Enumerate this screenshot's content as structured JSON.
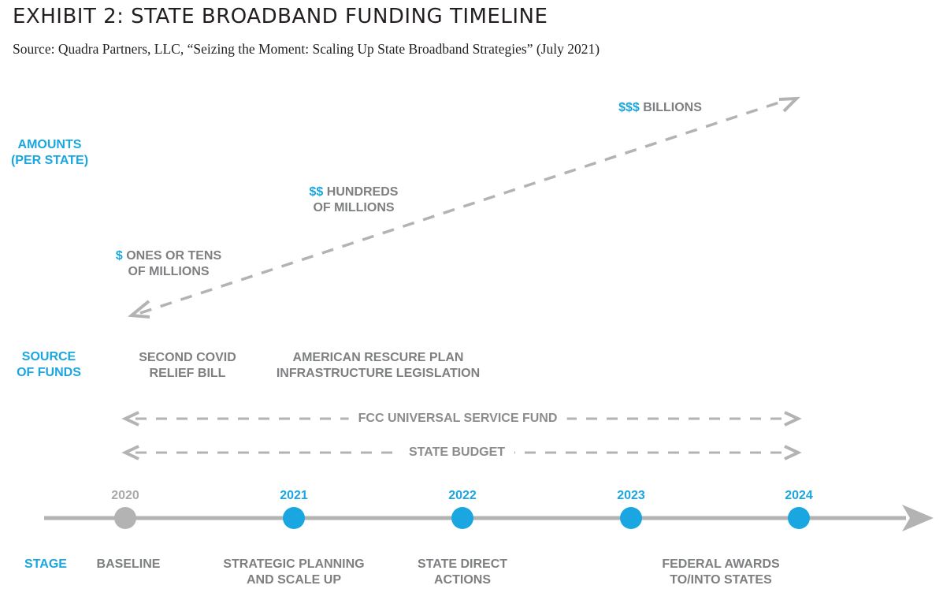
{
  "header": {
    "title": "EXHIBIT 2: STATE BROADBAND FUNDING TIMELINE",
    "source": "Source: Quadra Partners, LLC, “Seizing the Moment: Scaling Up State Broadband Strategies” (July 2021)"
  },
  "rows": {
    "amounts_line1": "AMOUNTS",
    "amounts_line2": "(PER STATE)",
    "source_line1": "SOURCE",
    "source_line2": "OF FUNDS",
    "stage": "STAGE"
  },
  "amounts": {
    "low_sym": "$",
    "low_line1": " ONES OR TENS",
    "low_line2": "OF MILLIONS",
    "mid_sym": "$$",
    "mid_line1": " HUNDREDS",
    "mid_line2": "OF MILLIONS",
    "high_sym": "$$$",
    "high_line1": " BILLIONS"
  },
  "funds": {
    "covid_line1": "SECOND COVID",
    "covid_line2": "RELIEF BILL",
    "arp_line1": "AMERICAN RESCURE PLAN",
    "arp_line2": "INFRASTRUCTURE LEGISLATION",
    "fcc": "FCC UNIVERSAL SERVICE FUND",
    "state_budget": "STATE BUDGET"
  },
  "timeline": {
    "years": [
      "2020",
      "2021",
      "2022",
      "2023",
      "2024"
    ],
    "stages": {
      "baseline": "BASELINE",
      "planning_line1": "STRATEGIC PLANNING",
      "planning_line2": "AND SCALE UP",
      "direct_line1": "STATE DIRECT",
      "direct_line2": "ACTIONS",
      "federal_line1": "FEDERAL AWARDS",
      "federal_line2": "TO/INTO STATES"
    }
  },
  "colors": {
    "accent": "#1aa6e0",
    "gray": "#b3b3b3",
    "baseline_dot": "#b3b3b3",
    "text_gray": "#7d7f81"
  }
}
